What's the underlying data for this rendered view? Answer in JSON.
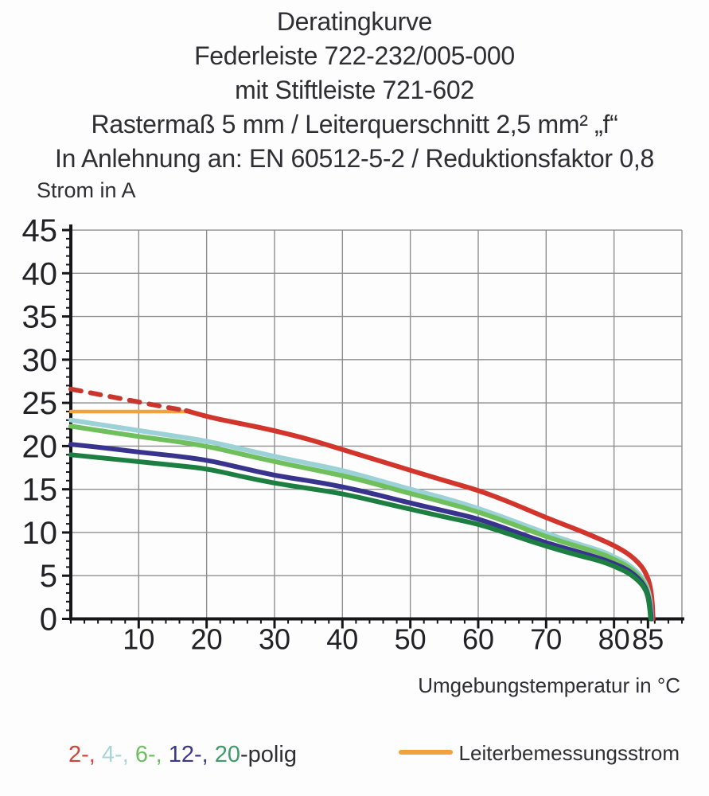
{
  "title": {
    "lines": [
      "Deratingkurve",
      "Federleiste 722-232/005-000",
      "mit Stiftleiste 721-602",
      "Rastermaß 5 mm / Leiterquerschnitt 2,5 mm² „f“",
      "In Anlehnung an: EN 60512-5-2 / Reduktionsfaktor 0,8"
    ]
  },
  "axes": {
    "y_title": "Strom in A",
    "x_title": "Umgebungstemperatur in °C"
  },
  "legend": {
    "pole_items": [
      {
        "label": "2-, ",
        "color": "#d2423a"
      },
      {
        "label": "4-, ",
        "color": "#a9d5d8"
      },
      {
        "label": "6-, ",
        "color": "#6fbe63"
      },
      {
        "label": "12-, ",
        "color": "#3a378f"
      },
      {
        "label": "20",
        "color": "#3f9c68"
      },
      {
        "label": "-polig",
        "color": "#2e2e33"
      }
    ],
    "rated_current": {
      "label": "Leiterbemessungsstrom",
      "swatch_color": "#f0a23e"
    }
  },
  "chart_data": {
    "type": "line",
    "title": "Deratingkurve Federleiste 722-232/005-000 mit Stiftleiste 721-602",
    "xlabel": "Umgebungstemperatur in °C",
    "ylabel": "Strom in A",
    "xlim": [
      0,
      90
    ],
    "ylim": [
      0,
      45
    ],
    "grid": true,
    "grid_color": "#8f8f8f",
    "axis_color": "#161618",
    "x_major_ticks": [
      10,
      20,
      30,
      40,
      50,
      60,
      70,
      80,
      85
    ],
    "y_major_ticks": [
      0,
      5,
      10,
      15,
      20,
      25,
      30,
      35,
      40,
      45
    ],
    "x_gridlines": [
      10,
      20,
      30,
      40,
      50,
      60,
      70,
      80,
      90
    ],
    "y_gridlines": [
      5,
      10,
      15,
      20,
      25,
      30,
      35,
      40,
      45
    ],
    "x_minor_step": 2,
    "y_minor_step": 1,
    "series": [
      {
        "id": "leiterbemessungsstrom",
        "name": "Leiterbemessungsstrom",
        "color": "#f0a23e",
        "width": 4.5,
        "points": [
          [
            0,
            24
          ],
          [
            17.5,
            24
          ]
        ]
      },
      {
        "id": "2-polig-gestrichelt",
        "name": "2-polig (gestrichelt)",
        "color": "#c9362e",
        "width": 6,
        "dash": "13 12",
        "points": [
          [
            0,
            26.6
          ],
          [
            5,
            25.85
          ],
          [
            10,
            25.1
          ],
          [
            14,
            24.5
          ],
          [
            17,
            24.1
          ]
        ]
      },
      {
        "id": "2-polig",
        "name": "2-polig",
        "color": "#d2352b",
        "width": 6,
        "points": [
          [
            17,
            24.1
          ],
          [
            20,
            23.4
          ],
          [
            25,
            22.6
          ],
          [
            30,
            21.8
          ],
          [
            35,
            20.8
          ],
          [
            40,
            19.6
          ],
          [
            45,
            18.4
          ],
          [
            50,
            17.2
          ],
          [
            55,
            16.0
          ],
          [
            60,
            14.9
          ],
          [
            65,
            13.4
          ],
          [
            70,
            11.7
          ],
          [
            75,
            10.2
          ],
          [
            78,
            9.2
          ],
          [
            80,
            8.5
          ],
          [
            82,
            7.6
          ],
          [
            83.5,
            6.6
          ],
          [
            84.5,
            5.6
          ],
          [
            85.2,
            4.3
          ],
          [
            85.6,
            2.5
          ],
          [
            85.75,
            0
          ]
        ]
      },
      {
        "id": "4-polig",
        "name": "4-polig",
        "color": "#9bd1d7",
        "width": 6,
        "points": [
          [
            0,
            23.0
          ],
          [
            5,
            22.4
          ],
          [
            10,
            21.8
          ],
          [
            15,
            21.2
          ],
          [
            20,
            20.6
          ],
          [
            25,
            19.7
          ],
          [
            30,
            18.8
          ],
          [
            35,
            18.0
          ],
          [
            40,
            17.2
          ],
          [
            45,
            16.1
          ],
          [
            50,
            15.0
          ],
          [
            55,
            14.0
          ],
          [
            60,
            12.8
          ],
          [
            65,
            11.4
          ],
          [
            70,
            9.9
          ],
          [
            75,
            8.6
          ],
          [
            78,
            7.9
          ],
          [
            80,
            7.2
          ],
          [
            82,
            6.4
          ],
          [
            83.5,
            5.4
          ],
          [
            84.5,
            4.4
          ],
          [
            85.1,
            3.2
          ],
          [
            85.4,
            1.8
          ],
          [
            85.55,
            0
          ]
        ]
      },
      {
        "id": "6-polig",
        "name": "6-polig",
        "color": "#6fc05c",
        "width": 6,
        "points": [
          [
            0,
            22.3
          ],
          [
            5,
            21.7
          ],
          [
            10,
            21.1
          ],
          [
            15,
            20.6
          ],
          [
            20,
            20.0
          ],
          [
            25,
            19.1
          ],
          [
            30,
            18.2
          ],
          [
            35,
            17.4
          ],
          [
            40,
            16.6
          ],
          [
            45,
            15.6
          ],
          [
            50,
            14.5
          ],
          [
            55,
            13.5
          ],
          [
            60,
            12.4
          ],
          [
            65,
            11.0
          ],
          [
            70,
            9.5
          ],
          [
            75,
            8.3
          ],
          [
            78,
            7.6
          ],
          [
            80,
            6.9
          ],
          [
            82,
            6.1
          ],
          [
            83.5,
            5.1
          ],
          [
            84.5,
            4.1
          ],
          [
            85,
            3.0
          ],
          [
            85.3,
            1.6
          ],
          [
            85.45,
            0
          ]
        ]
      },
      {
        "id": "12-polig",
        "name": "12-polig",
        "color": "#38348e",
        "width": 6,
        "points": [
          [
            0,
            20.2
          ],
          [
            5,
            19.8
          ],
          [
            10,
            19.3
          ],
          [
            15,
            18.9
          ],
          [
            20,
            18.4
          ],
          [
            25,
            17.5
          ],
          [
            30,
            16.6
          ],
          [
            35,
            16.0
          ],
          [
            40,
            15.3
          ],
          [
            45,
            14.4
          ],
          [
            50,
            13.4
          ],
          [
            55,
            12.5
          ],
          [
            60,
            11.6
          ],
          [
            65,
            10.2
          ],
          [
            70,
            8.8
          ],
          [
            75,
            7.7
          ],
          [
            78,
            7.0
          ],
          [
            80,
            6.4
          ],
          [
            82,
            5.7
          ],
          [
            83.5,
            4.8
          ],
          [
            84.5,
            3.8
          ],
          [
            85,
            2.8
          ],
          [
            85.3,
            1.5
          ],
          [
            85.5,
            0
          ]
        ]
      },
      {
        "id": "20-polig",
        "name": "20-polig",
        "color": "#1c7e41",
        "width": 6,
        "points": [
          [
            0,
            19.0
          ],
          [
            5,
            18.6
          ],
          [
            10,
            18.2
          ],
          [
            15,
            17.8
          ],
          [
            20,
            17.4
          ],
          [
            25,
            16.5
          ],
          [
            30,
            15.7
          ],
          [
            35,
            15.1
          ],
          [
            40,
            14.5
          ],
          [
            45,
            13.6
          ],
          [
            50,
            12.7
          ],
          [
            55,
            11.8
          ],
          [
            60,
            11.0
          ],
          [
            65,
            9.7
          ],
          [
            70,
            8.4
          ],
          [
            75,
            7.3
          ],
          [
            78,
            6.7
          ],
          [
            80,
            6.1
          ],
          [
            82,
            5.4
          ],
          [
            83.5,
            4.5
          ],
          [
            84.5,
            3.6
          ],
          [
            85,
            2.6
          ],
          [
            85.25,
            1.3
          ],
          [
            85.4,
            0
          ]
        ]
      }
    ]
  }
}
